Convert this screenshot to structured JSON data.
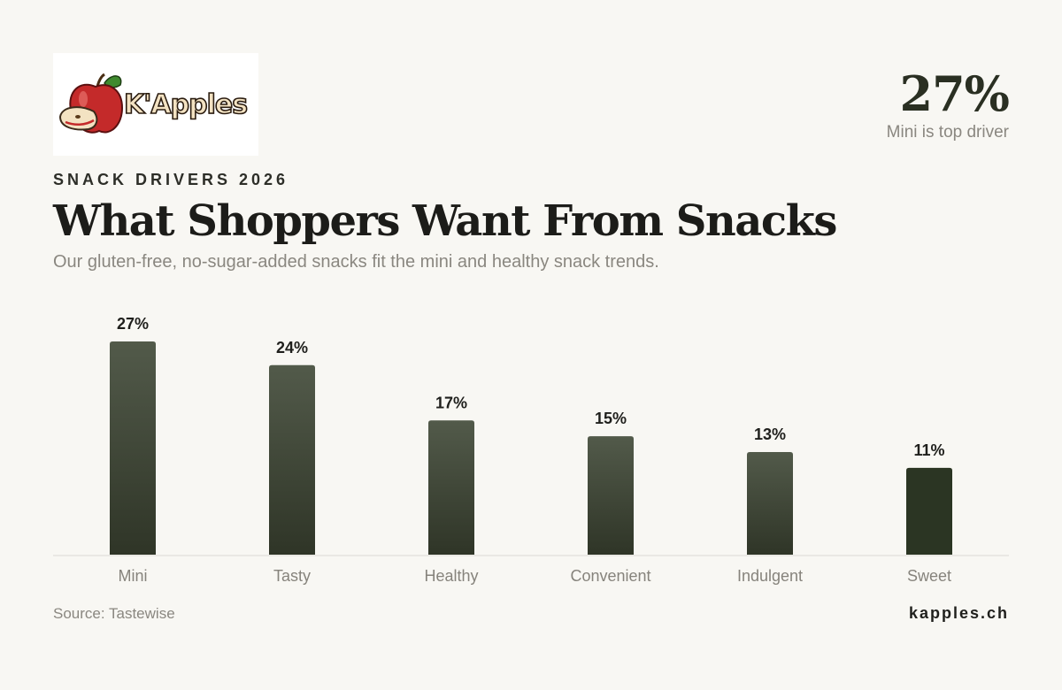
{
  "brand": {
    "logo_text": "K'Apples",
    "website": "kapples.ch"
  },
  "kpi": {
    "value": "27%",
    "caption": "Mini is top driver"
  },
  "header": {
    "eyebrow": "SNACK DRIVERS 2026",
    "title": "What Shoppers Want From Snacks",
    "subtitle": "Our gluten-free, no-sugar-added snacks fit the mini and healthy snack trends."
  },
  "footer": {
    "source": "Source: Tastewise"
  },
  "colors": {
    "background": "#f8f7f3",
    "bar_top": "#525a4a",
    "bar_bottom": "#2f3527",
    "highlight_bar": "#2b3523",
    "axis": "#dcdad4"
  },
  "chart_data": {
    "type": "bar",
    "categories": [
      "Mini",
      "Tasty",
      "Healthy",
      "Convenient",
      "Indulgent",
      "Sweet"
    ],
    "values": [
      27,
      24,
      17,
      15,
      13,
      11
    ],
    "value_labels": [
      "27%",
      "24%",
      "17%",
      "15%",
      "13%",
      "11%"
    ],
    "unit": "%",
    "ylim": [
      0,
      27
    ],
    "grid": false,
    "legend": "none"
  }
}
